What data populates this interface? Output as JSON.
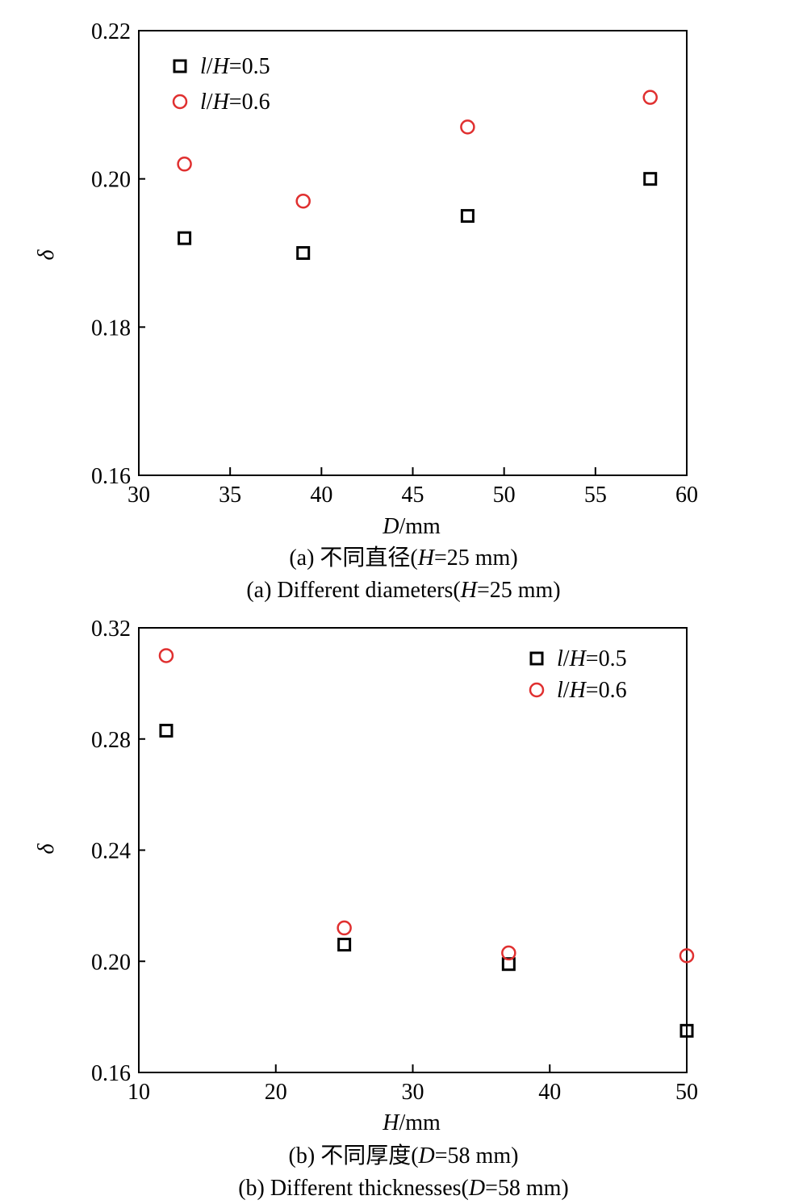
{
  "colors": {
    "series_a": "#000000",
    "series_b": "#e03030",
    "axis": "#000000"
  },
  "chart_data": [
    {
      "type": "scatter",
      "panel": "a",
      "xlabel": {
        "var": "D",
        "unit": "/mm"
      },
      "ylabel": "δ",
      "xlim": [
        30,
        60
      ],
      "ylim": [
        0.16,
        0.22
      ],
      "xticks": [
        "30",
        "35",
        "40",
        "45",
        "50",
        "55",
        "60"
      ],
      "yticks": [
        "0.16",
        "0.18",
        "0.20",
        "0.22"
      ],
      "grid": false,
      "legend_position": "top-left",
      "series": [
        {
          "name": {
            "var": "l",
            "sep": "/",
            "var2": "H",
            "rest": "=0.5"
          },
          "marker": "square",
          "x": [
            32.5,
            39,
            48,
            58
          ],
          "y": [
            0.192,
            0.19,
            0.195,
            0.2
          ]
        },
        {
          "name": {
            "var": "l",
            "sep": "/",
            "var2": "H",
            "rest": "=0.6"
          },
          "marker": "circle",
          "x": [
            32.5,
            39,
            48,
            58
          ],
          "y": [
            0.202,
            0.197,
            0.207,
            0.211
          ]
        }
      ],
      "caption_cn": {
        "prefix": "(a) 不同直径(",
        "var": "H",
        "rest": "=25 mm)"
      },
      "caption_en": {
        "prefix": "(a) Different diameters(",
        "var": "H",
        "rest": "=25 mm)"
      }
    },
    {
      "type": "scatter",
      "panel": "b",
      "xlabel": {
        "var": "H",
        "unit": "/mm"
      },
      "ylabel": "δ",
      "xlim": [
        10,
        50
      ],
      "ylim": [
        0.16,
        0.32
      ],
      "xticks": [
        "10",
        "20",
        "30",
        "40",
        "50"
      ],
      "yticks": [
        "0.16",
        "0.20",
        "0.24",
        "0.28",
        "0.32"
      ],
      "grid": false,
      "legend_position": "top-right",
      "series": [
        {
          "name": {
            "var": "l",
            "sep": "/",
            "var2": "H",
            "rest": "=0.5"
          },
          "marker": "square",
          "x": [
            12,
            25,
            37,
            50
          ],
          "y": [
            0.283,
            0.206,
            0.199,
            0.175
          ]
        },
        {
          "name": {
            "var": "l",
            "sep": "/",
            "var2": "H",
            "rest": "=0.6"
          },
          "marker": "circle",
          "x": [
            12,
            25,
            37,
            50
          ],
          "y": [
            0.31,
            0.212,
            0.203,
            0.202
          ]
        }
      ],
      "caption_cn": {
        "prefix": "(b) 不同厚度(",
        "var": "D",
        "rest": "=58 mm)"
      },
      "caption_en": {
        "prefix": "(b) Different thicknesses(",
        "var": "D",
        "rest": "=58 mm)"
      }
    }
  ]
}
